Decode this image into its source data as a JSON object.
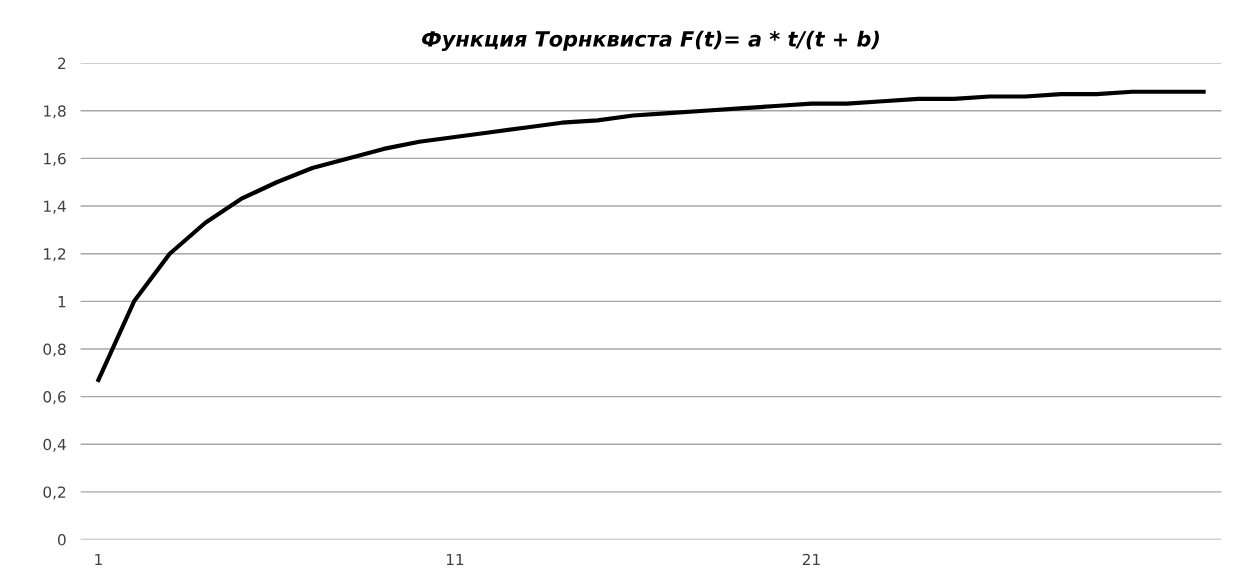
{
  "chart_data": {
    "type": "line",
    "title": "Функция Торнквиста F(t)= a * t/(t + b)",
    "categories": [
      "1",
      null,
      null,
      null,
      null,
      null,
      null,
      null,
      null,
      null,
      "11",
      null,
      null,
      null,
      null,
      null,
      null,
      null,
      null,
      null,
      "21",
      null,
      null,
      null,
      null,
      null,
      null,
      null,
      null,
      null,
      null,
      null
    ],
    "series": [
      {
        "color": "#000000",
        "values": [
          0.67,
          1.0,
          1.2,
          1.33,
          1.43,
          1.5,
          1.56,
          1.6,
          1.64,
          1.67,
          1.69,
          1.71,
          1.73,
          1.75,
          1.76,
          1.78,
          1.79,
          1.8,
          1.81,
          1.82,
          1.83,
          1.83,
          1.84,
          1.85,
          1.85,
          1.86,
          1.86,
          1.87,
          1.87,
          1.88,
          1.88,
          1.88
        ]
      }
    ],
    "ylim": [
      0,
      2
    ],
    "yticks": [
      0,
      {
        "value": 0.2,
        "label": "0,2"
      },
      {
        "value": 0.4,
        "label": "0,4"
      },
      {
        "value": 0.6,
        "label": "0,6"
      },
      {
        "value": 0.8,
        "label": "0,8"
      },
      1,
      {
        "value": 1.2,
        "label": "1,2"
      },
      {
        "value": 1.4,
        "label": "1,4"
      },
      {
        "value": 1.6,
        "label": "1,6"
      },
      {
        "value": 1.8,
        "label": "1,8"
      },
      2
    ],
    "grid": "y",
    "marker": "none",
    "line_style": "solid",
    "legend": false
  }
}
